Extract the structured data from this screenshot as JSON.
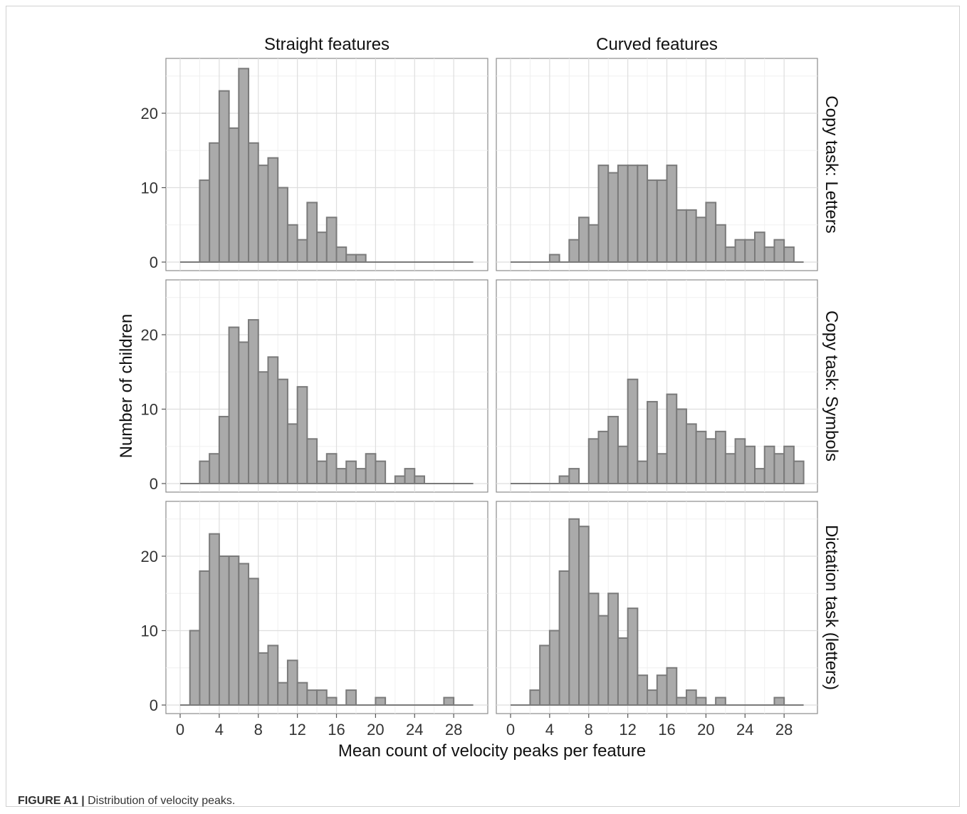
{
  "caption": {
    "label": "FIGURE A1 |",
    "text": "Distribution of velocity peaks."
  },
  "chart_data": {
    "type": "bar",
    "subtype": "faceted histogram",
    "xlabel": "Mean count of velocity peaks per feature",
    "ylabel": "Number of children",
    "xlim": [
      0,
      30
    ],
    "ylim": [
      0,
      25
    ],
    "xticks": [
      0,
      4,
      8,
      12,
      16,
      20,
      24,
      28
    ],
    "yticks": [
      0,
      10,
      20
    ],
    "grid": true,
    "bin_width": 1,
    "bar_fill": "#aaaaaa",
    "bar_stroke": "#7a7a7a",
    "columns": [
      "Straight features",
      "Curved features"
    ],
    "rows": [
      "Copy task: Letters",
      "Copy task: Symbols",
      "Dictation task (letters)"
    ],
    "panels": [
      {
        "row": "Copy task: Letters",
        "column": "Straight features",
        "bin_start": 0,
        "counts": [
          0,
          0,
          11,
          16,
          23,
          18,
          26,
          16,
          13,
          14,
          10,
          5,
          3,
          8,
          4,
          6,
          2,
          1,
          1,
          0,
          0,
          0,
          0,
          0,
          0,
          0,
          0,
          0,
          0,
          0
        ]
      },
      {
        "row": "Copy task: Letters",
        "column": "Curved features",
        "bin_start": 0,
        "counts": [
          0,
          0,
          0,
          0,
          1,
          0,
          3,
          6,
          5,
          13,
          12,
          13,
          13,
          13,
          11,
          11,
          13,
          7,
          7,
          6,
          8,
          5,
          2,
          3,
          3,
          4,
          2,
          3,
          2,
          0
        ]
      },
      {
        "row": "Copy task: Symbols",
        "column": "Straight features",
        "bin_start": 0,
        "counts": [
          0,
          0,
          3,
          4,
          9,
          21,
          19,
          22,
          15,
          17,
          14,
          8,
          13,
          6,
          3,
          4,
          2,
          3,
          2,
          4,
          3,
          0,
          1,
          2,
          1,
          0,
          0,
          0,
          0,
          0
        ]
      },
      {
        "row": "Copy task: Symbols",
        "column": "Curved features",
        "bin_start": 0,
        "counts": [
          0,
          0,
          0,
          0,
          0,
          1,
          2,
          0,
          6,
          7,
          9,
          5,
          14,
          3,
          11,
          4,
          12,
          10,
          8,
          7,
          6,
          7,
          4,
          6,
          5,
          2,
          5,
          4,
          5,
          3
        ]
      },
      {
        "row": "Dictation task (letters)",
        "column": "Straight features",
        "bin_start": 0,
        "counts": [
          0,
          10,
          18,
          23,
          20,
          20,
          19,
          17,
          7,
          8,
          3,
          6,
          3,
          2,
          2,
          1,
          0,
          2,
          0,
          0,
          1,
          0,
          0,
          0,
          0,
          0,
          0,
          1,
          0,
          0
        ]
      },
      {
        "row": "Dictation task (letters)",
        "column": "Curved features",
        "bin_start": 0,
        "counts": [
          0,
          0,
          2,
          8,
          10,
          18,
          25,
          24,
          15,
          12,
          15,
          9,
          13,
          4,
          2,
          4,
          5,
          1,
          2,
          1,
          0,
          1,
          0,
          0,
          0,
          0,
          0,
          1,
          0,
          0
        ]
      }
    ]
  }
}
